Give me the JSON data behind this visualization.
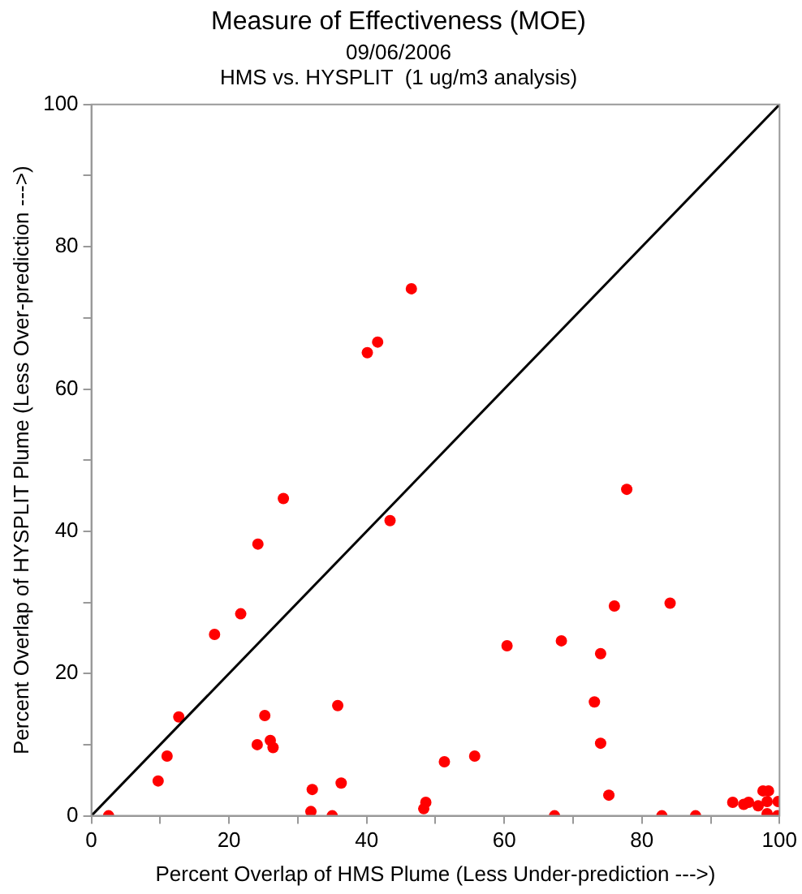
{
  "chart_data": {
    "type": "scatter",
    "title": "Measure of Effectiveness (MOE)",
    "subtitle": "09/06/2006\nHMS vs. HYSPLIT  (1 ug/m3 analysis)",
    "xlabel": "Percent Overlap of HMS Plume (Less Under-prediction --->)",
    "ylabel": "Percent Overlap of HYSPLIT Plume (Less Over-prediction --->)",
    "xlim": [
      0,
      100
    ],
    "ylim": [
      0,
      100
    ],
    "xticks": [
      0,
      {
        "value": 10,
        "label": null
      },
      20,
      {
        "value": 30,
        "label": null
      },
      40,
      {
        "value": 50,
        "label": null
      },
      60,
      {
        "value": 70,
        "label": null
      },
      80,
      {
        "value": 90,
        "label": null
      },
      100
    ],
    "yticks": [
      0,
      {
        "value": 10,
        "label": null
      },
      20,
      {
        "value": 30,
        "label": null
      },
      40,
      {
        "value": 50,
        "label": null
      },
      60,
      {
        "value": 70,
        "label": null
      },
      80,
      {
        "value": 90,
        "label": null
      },
      100
    ],
    "grid": false,
    "legend": false,
    "marker": "circle",
    "series": [
      {
        "type": "line",
        "color": "#000000",
        "marker": "none",
        "x": [
          0,
          100
        ],
        "values": [
          0,
          100
        ]
      },
      {
        "color": "#ff0000",
        "x": [
          2.5,
          9.7,
          11.0,
          12.7,
          17.9,
          21.7,
          24.2,
          27.9,
          43.4,
          40.1,
          41.6,
          46.5,
          25.2,
          24.1,
          26.0,
          26.4,
          32.1,
          31.9,
          35.0,
          35.8,
          36.3,
          48.3,
          48.6,
          51.3,
          55.7,
          77.8,
          76.0,
          84.1,
          60.4,
          68.3,
          74.0,
          73.1,
          74.0,
          75.2,
          67.3,
          82.9,
          87.8,
          93.2,
          94.8,
          95.5,
          96.9,
          97.6,
          98.4,
          98.2,
          98.2,
          99.8,
          99.7
        ],
        "values": [
          0,
          4.9,
          8.4,
          13.9,
          25.5,
          28.4,
          38.2,
          44.6,
          41.5,
          65.1,
          66.6,
          74.1,
          14.1,
          10.0,
          10.6,
          9.6,
          3.7,
          0.6,
          0,
          15.5,
          4.6,
          1.0,
          1.9,
          7.6,
          8.4,
          45.9,
          29.5,
          29.9,
          23.9,
          24.6,
          22.8,
          16.0,
          10.2,
          2.9,
          0,
          0,
          0,
          1.9,
          1.6,
          1.9,
          1.4,
          3.5,
          3.5,
          2.0,
          0.3,
          2.0,
          0
        ]
      }
    ]
  }
}
